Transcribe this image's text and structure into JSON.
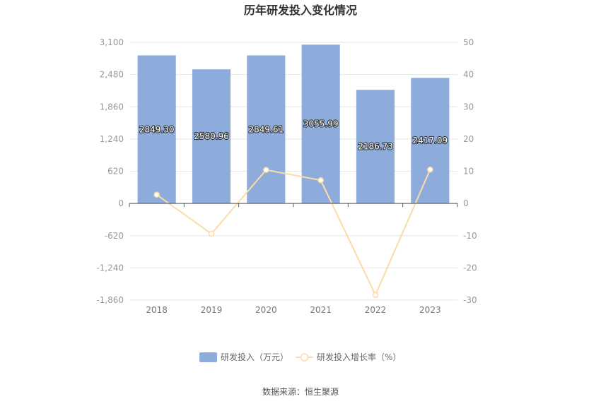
{
  "chart_data": {
    "type": "bar",
    "title": "历年研发投入变化情况",
    "categories": [
      "2018",
      "2019",
      "2020",
      "2021",
      "2022",
      "2023"
    ],
    "series": [
      {
        "name": "研发投入（万元）",
        "type": "bar",
        "axis": "left",
        "values": [
          2849.3,
          2580.96,
          2849.61,
          3055.99,
          2186.73,
          2417.09
        ],
        "labels": [
          "2849.30",
          "2580.96",
          "2849.61",
          "3055.99",
          "2186.73",
          "2417.09"
        ],
        "color": "#8dacdc"
      },
      {
        "name": "研发投入增长率（%）",
        "type": "line",
        "axis": "right",
        "values": [
          2.7,
          -9.4,
          10.4,
          7.2,
          -28.4,
          10.5
        ],
        "color": "#fbdca6"
      }
    ],
    "y_left": {
      "ylim": [
        -1860,
        3100
      ],
      "ticks": [
        3100,
        2480,
        1860,
        1240,
        620,
        0,
        -620,
        -1240,
        -1860
      ],
      "tick_labels": [
        "3,100",
        "2,480",
        "1,860",
        "1,240",
        "620",
        "0",
        "-620",
        "-1,240",
        "-1,860"
      ]
    },
    "y_right": {
      "ylim": [
        -30,
        50
      ],
      "ticks": [
        50,
        40,
        30,
        20,
        10,
        0,
        -10,
        -20,
        -30
      ],
      "tick_labels": [
        "50",
        "40",
        "30",
        "20",
        "10",
        "0",
        "-10",
        "-20",
        "-30"
      ]
    },
    "grid": true,
    "legend": "bottom-center",
    "source": "数据来源：恒生聚源"
  }
}
